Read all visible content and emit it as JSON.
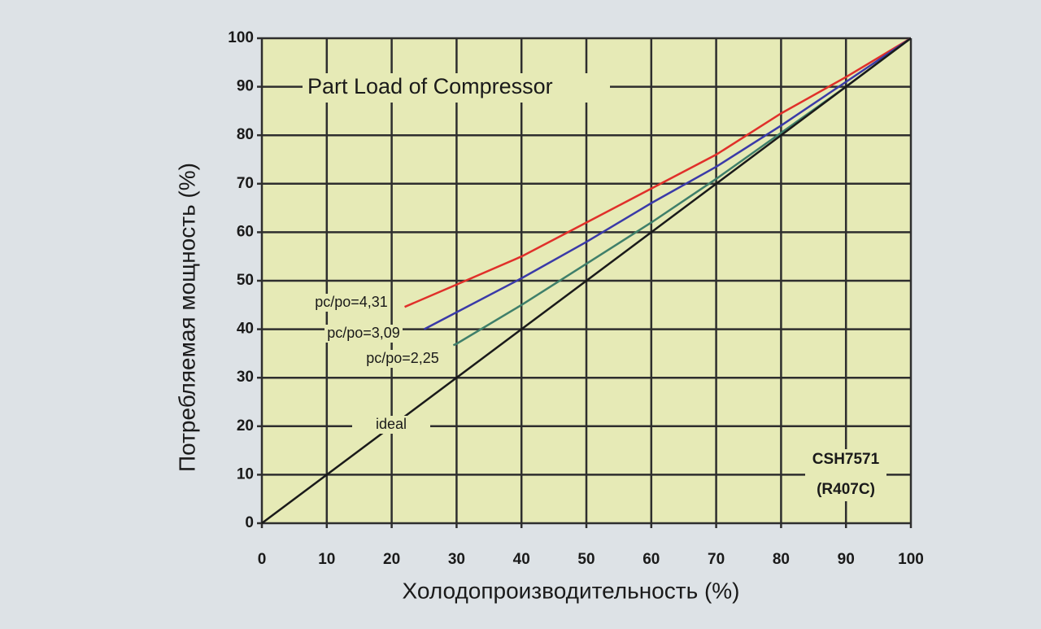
{
  "chart_data": {
    "type": "line",
    "title": "Part Load of Compressor",
    "x_label": "Холодопроизводительность (%)",
    "y_label": "Потребляемая мощность (%)",
    "annotations": [
      "CSH7571",
      "(R407C)"
    ],
    "xlim": [
      0,
      100
    ],
    "ylim": [
      0,
      100
    ],
    "xticks": [
      0,
      10,
      20,
      30,
      40,
      50,
      60,
      70,
      80,
      90,
      100
    ],
    "yticks": [
      0,
      10,
      20,
      30,
      40,
      50,
      60,
      70,
      80,
      90,
      100
    ],
    "grid": true,
    "series": [
      {
        "name": "pc/po=4,31",
        "color": "#e0302a",
        "x": [
          22,
          30,
          40,
          50,
          60,
          70,
          80,
          90,
          100
        ],
        "values": [
          44.6,
          49.2,
          55,
          62,
          69,
          76,
          84.5,
          92,
          100
        ]
      },
      {
        "name": "pc/po=3,09",
        "color": "#3a3aa8",
        "x": [
          25,
          30,
          40,
          50,
          60,
          70,
          80,
          90,
          100
        ],
        "values": [
          40,
          43.5,
          50.5,
          58,
          66,
          73.5,
          82,
          91,
          100
        ]
      },
      {
        "name": "pc/po=2,25",
        "color": "#3f7f6a",
        "x": [
          29.5,
          30,
          40,
          50,
          60,
          70,
          80,
          90,
          100
        ],
        "values": [
          36.7,
          37,
          45,
          53.5,
          62,
          71,
          80.5,
          90,
          100
        ]
      },
      {
        "name": "ideal",
        "color": "#1a1a1a",
        "x": [
          0,
          100
        ],
        "values": [
          0,
          100
        ]
      }
    ]
  }
}
